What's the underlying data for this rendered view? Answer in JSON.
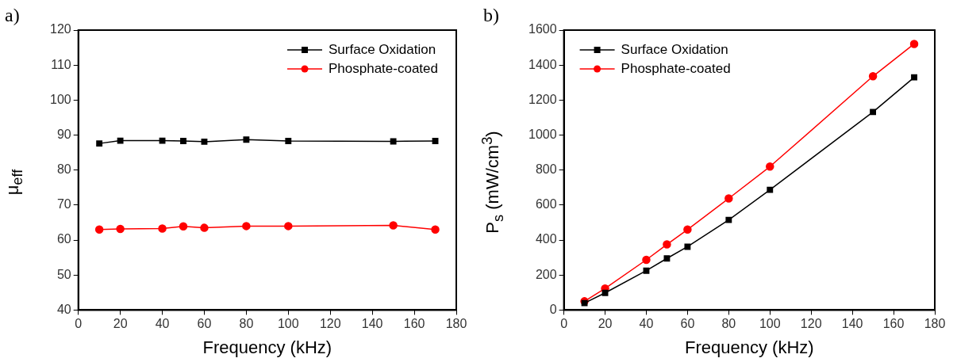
{
  "chart_data": [
    {
      "type": "line",
      "annotations": [
        "a)"
      ],
      "xlabel": "Frequency (kHz)",
      "ylabel": "μ$_{eff}$",
      "x": [
        10,
        20,
        40,
        50,
        60,
        80,
        100,
        150,
        170
      ],
      "xlim": [
        0,
        180
      ],
      "xticks": [
        0,
        20,
        40,
        60,
        80,
        100,
        120,
        140,
        160,
        180
      ],
      "ylim": [
        40,
        120
      ],
      "yticks": [
        40,
        50,
        60,
        70,
        80,
        90,
        100,
        110,
        120
      ],
      "grid": false,
      "legend": "top right",
      "series": [
        {
          "name": "Surface Oxidation",
          "color": "#000000",
          "marker": "square",
          "values": [
            87.6,
            88.4,
            88.4,
            88.3,
            88.1,
            88.7,
            88.3,
            88.2,
            88.3
          ]
        },
        {
          "name": "Phosphate-coated",
          "color": "#ff0000",
          "marker": "circle",
          "values": [
            63,
            63.2,
            63.3,
            63.9,
            63.5,
            64,
            64,
            64.2,
            63
          ]
        }
      ]
    },
    {
      "type": "line",
      "annotations": [
        "b)"
      ],
      "xlabel": "Frequency (kHz)",
      "ylabel": "P$_{s}$ (mW/cm$^{3}$)",
      "x": [
        10,
        20,
        40,
        50,
        60,
        80,
        100,
        150,
        170
      ],
      "xlim": [
        0,
        180
      ],
      "xticks": [
        0,
        20,
        40,
        60,
        80,
        100,
        120,
        140,
        160,
        180
      ],
      "ylim": [
        0,
        1600
      ],
      "yticks": [
        0,
        200,
        400,
        600,
        800,
        1000,
        1200,
        1400,
        1600
      ],
      "grid": false,
      "legend": "top left",
      "series": [
        {
          "name": "Surface Oxidation",
          "color": "#000000",
          "marker": "square",
          "values": [
            40,
            98,
            225,
            295,
            362,
            515,
            687,
            1132,
            1330
          ]
        },
        {
          "name": "Phosphate-coated",
          "color": "#ff0000",
          "marker": "circle",
          "values": [
            50,
            123,
            287,
            375,
            460,
            638,
            820,
            1336,
            1521
          ]
        }
      ]
    }
  ]
}
